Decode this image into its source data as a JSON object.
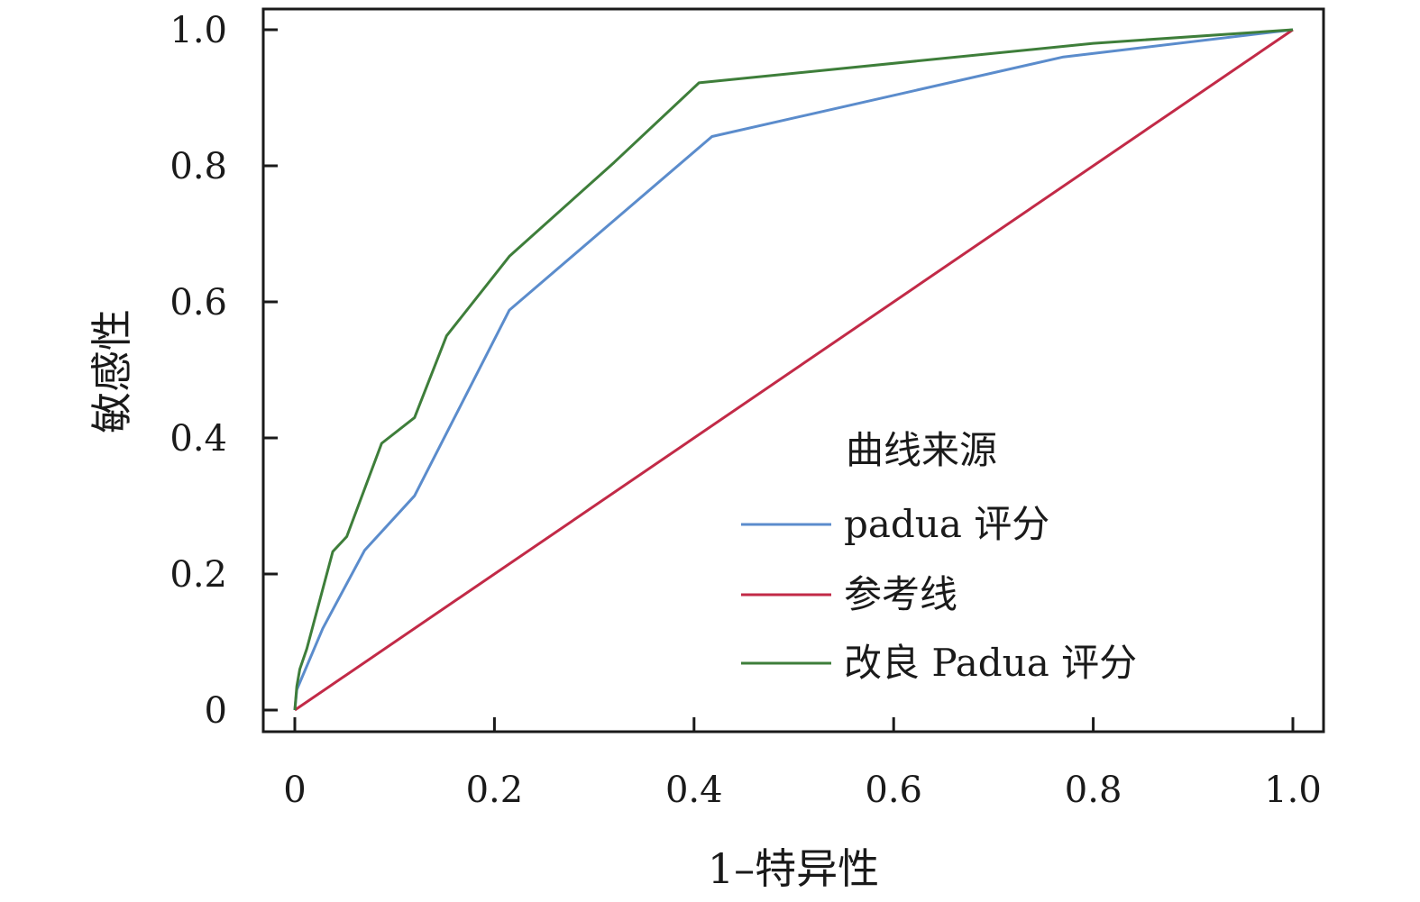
{
  "chart_data": {
    "type": "line",
    "title": "",
    "xlabel": "1–特异性",
    "ylabel": "敏感性",
    "xlim": [
      0,
      1
    ],
    "ylim": [
      0,
      1
    ],
    "x_ticks": [
      0,
      0.2,
      0.4,
      0.6,
      0.8,
      1.0
    ],
    "x_tick_labels": [
      "0",
      "0.2",
      "0.4",
      "0.6",
      "0.8",
      "1.0"
    ],
    "y_ticks": [
      0,
      0.2,
      0.4,
      0.6,
      0.8,
      1.0
    ],
    "y_tick_labels": [
      "0",
      "0.2",
      "0.4",
      "0.6",
      "0.8",
      "1.0"
    ],
    "grid": false,
    "legend": {
      "title": "曲线来源",
      "placement": "bottom-right"
    },
    "series": [
      {
        "name": "padua 评分",
        "color": "#5b8ccc",
        "points": [
          [
            0,
            0
          ],
          [
            0.002,
            0.03
          ],
          [
            0.028,
            0.12
          ],
          [
            0.07,
            0.235
          ],
          [
            0.12,
            0.315
          ],
          [
            0.215,
            0.588
          ],
          [
            0.418,
            0.843
          ],
          [
            0.77,
            0.96
          ],
          [
            1.0,
            1.0
          ]
        ]
      },
      {
        "name": "参考线",
        "color": "#c22a47",
        "points": [
          [
            0,
            0
          ],
          [
            1.0,
            1.0
          ]
        ]
      },
      {
        "name": "改良 Padua 评分",
        "color": "#3e7e3a",
        "points": [
          [
            0,
            0
          ],
          [
            0.002,
            0.035
          ],
          [
            0.005,
            0.06
          ],
          [
            0.012,
            0.09
          ],
          [
            0.038,
            0.233
          ],
          [
            0.052,
            0.255
          ],
          [
            0.087,
            0.392
          ],
          [
            0.12,
            0.43
          ],
          [
            0.152,
            0.55
          ],
          [
            0.215,
            0.667
          ],
          [
            0.32,
            0.805
          ],
          [
            0.405,
            0.922
          ],
          [
            0.8,
            0.98
          ],
          [
            1.0,
            1.0
          ]
        ]
      }
    ]
  }
}
